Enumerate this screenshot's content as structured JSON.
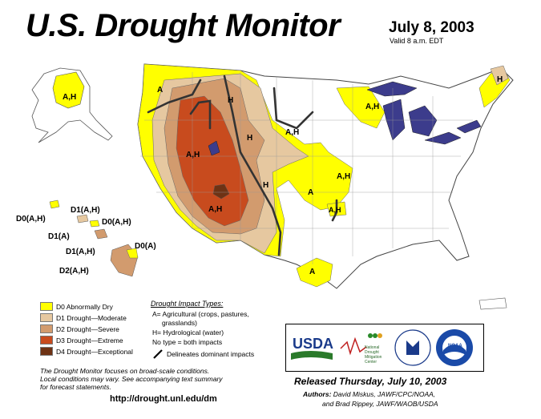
{
  "header": {
    "title": "U.S. Drought Monitor",
    "date": "July 8, 2003",
    "valid": "Valid 8 a.m. EDT"
  },
  "colors": {
    "d0": "#FFFF00",
    "d1": "#E6C8A0",
    "d2": "#D29B6E",
    "d3": "#C84B1E",
    "d4": "#6E3214",
    "lake": "#3C3C8C"
  },
  "legend": {
    "items": [
      {
        "label": "D0 Abnormally Dry",
        "color": "#FFFF00"
      },
      {
        "label": "D1 Drought—Moderate",
        "color": "#E6C8A0"
      },
      {
        "label": "D2 Drought—Severe",
        "color": "#D29B6E"
      },
      {
        "label": "D3 Drought—Extreme",
        "color": "#C84B1E"
      },
      {
        "label": "D4 Drought—Exceptional",
        "color": "#6E3214"
      }
    ]
  },
  "impact": {
    "title": "Drought Impact Types:",
    "line1": "A= Agricultural (crops, pastures,",
    "line2": "grasslands)",
    "line3": "H= Hydrological (water)",
    "line4": "No type = both impacts",
    "line5": "Delineates dominant impacts"
  },
  "map_labels": {
    "alaska": "A,H",
    "pnw": "A",
    "idaho": "A,H",
    "montana": "H",
    "wyoming": "H",
    "dakota": "A,H",
    "utah": "A,H",
    "colorado": "H",
    "arizona": "A,H",
    "kansas": "A",
    "ozark": "A,H",
    "okla": "A,H",
    "texas": "A",
    "michigan": "A,H",
    "maine": "H",
    "hi_d1": "D1(A,H)",
    "hi_d0a": "D0(A,H)",
    "hi_d0b": "D0(A,H)",
    "hi_d1a": "D1(A)",
    "hi_d1b": "D1(A,H)",
    "hi_d0c": "D0(A)",
    "hi_d2": "D2(A,H)"
  },
  "logos": {
    "usda": "USDA",
    "ndmc1": "National",
    "ndmc2": "Drought",
    "ndmc3": "Mitigation",
    "ndmc4": "Center",
    "noaa": "NOAA"
  },
  "footer": {
    "focus1": "The Drought Monitor focuses on broad-scale conditions.",
    "focus2": "Local conditions may vary. See accompanying text summary",
    "focus3": "for forecast statements.",
    "url": "http://drought.unl.edu/dm",
    "released": "Released Thursday, July 10, 2003",
    "authors_label": "Authors:",
    "authors1": "David Miskus, JAWF/CPC/NOAA,",
    "authors2": "and Brad Rippey, JAWF/WAOB/USDA"
  }
}
